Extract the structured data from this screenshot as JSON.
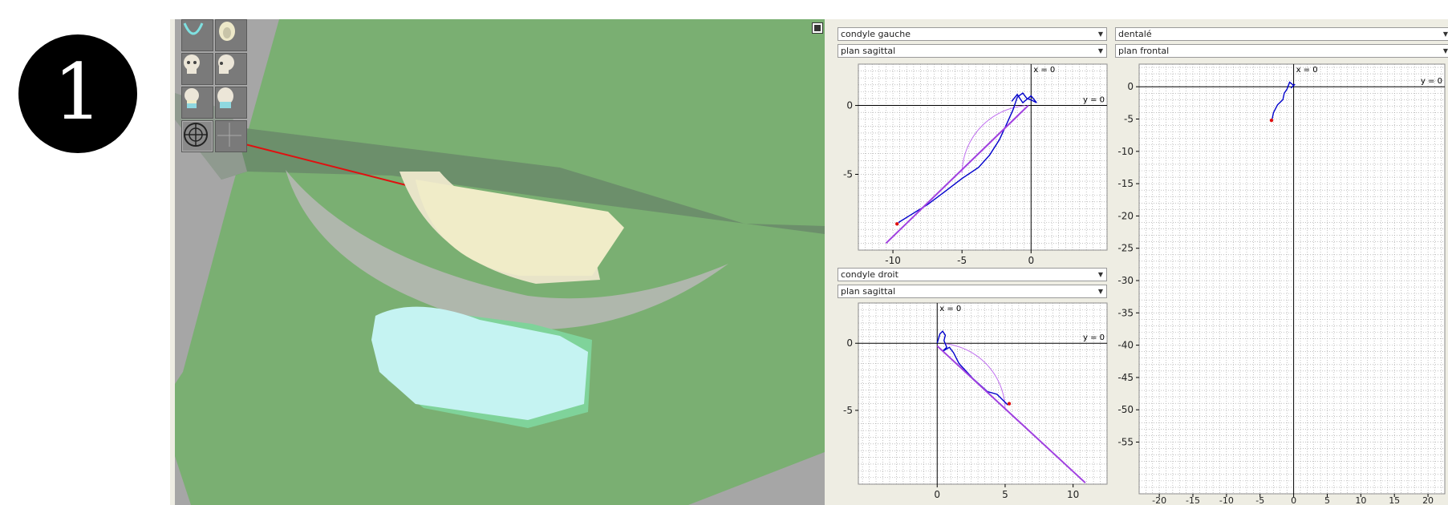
{
  "badge": {
    "number": "1"
  },
  "viewport": {
    "toolbar": [
      "arch-icon",
      "maxilla-icon",
      "skull-front-icon",
      "skull-side-icon",
      "skull-front-color-icon",
      "skull-back-color-icon",
      "target-icon",
      "crosshair-icon"
    ]
  },
  "panels": {
    "left_top": {
      "select1": "condyle gauche",
      "select2": "plan sagittal"
    },
    "left_bottom": {
      "select1": "condyle droit",
      "select2": "plan sagittal"
    },
    "right": {
      "select1": "dentalé",
      "select2": "plan frontal"
    }
  },
  "chart_data": [
    {
      "type": "line",
      "name_label": "condyle gauche / plan sagittal",
      "x_ticks": [
        "-10",
        "-5",
        "0"
      ],
      "y_ticks": [
        "0",
        "-5"
      ],
      "xlim": [
        -12.5,
        5.5
      ],
      "ylim": [
        -10.5,
        3
      ],
      "origin_labels": {
        "x": "x = 0",
        "y": "y = 0"
      },
      "series": [
        {
          "color": "#0000cc",
          "points": [
            [
              -9.6,
              -8.5
            ],
            [
              -8.8,
              -8
            ],
            [
              -7.5,
              -7.2
            ],
            [
              -6.3,
              -6.3
            ],
            [
              -5,
              -5.3
            ],
            [
              -3.8,
              -4.5
            ],
            [
              -3,
              -3.6
            ],
            [
              -2.3,
              -2.5
            ],
            [
              -1.7,
              -1.2
            ],
            [
              -1.3,
              -0.3
            ],
            [
              -1,
              0.6
            ],
            [
              -0.6,
              0.9
            ],
            [
              -0.3,
              0.5
            ],
            [
              0,
              0.4
            ],
            [
              0.4,
              0.2
            ],
            [
              0,
              0.7
            ],
            [
              -0.6,
              0.2
            ],
            [
              -1,
              0.8
            ],
            [
              -1.4,
              0.3
            ]
          ]
        },
        {
          "color": "#a040e0",
          "points": [
            [
              -10.5,
              -10
            ],
            [
              -0.2,
              0
            ]
          ]
        }
      ],
      "arc": {
        "cx": 0,
        "cy": -5,
        "r": 5,
        "from_deg": 95,
        "to_deg": 180
      },
      "end_point": [
        -9.7,
        -8.6
      ]
    },
    {
      "type": "line",
      "name_label": "condyle droit / plan sagittal",
      "x_ticks": [
        "0",
        "5",
        "10"
      ],
      "y_ticks": [
        "0",
        "-5"
      ],
      "xlim": [
        -5.8,
        12.5
      ],
      "ylim": [
        -10.5,
        3
      ],
      "origin_labels": {
        "x": "x = 0",
        "y": "y = 0"
      },
      "series": [
        {
          "color": "#0000cc",
          "points": [
            [
              0,
              0
            ],
            [
              0.2,
              0.7
            ],
            [
              0.4,
              0.9
            ],
            [
              0.6,
              0.6
            ],
            [
              0.5,
              0.2
            ],
            [
              0.7,
              -0.3
            ],
            [
              0.4,
              -0.6
            ],
            [
              0.9,
              -0.3
            ],
            [
              1.2,
              -0.7
            ],
            [
              1.6,
              -1.5
            ],
            [
              2.6,
              -2.6
            ],
            [
              3.7,
              -3.6
            ],
            [
              4.4,
              -3.8
            ],
            [
              5.2,
              -4.6
            ]
          ]
        },
        {
          "color": "#a040e0",
          "points": [
            [
              0,
              -0.2
            ],
            [
              10.9,
              -10.4
            ]
          ]
        }
      ],
      "arc": {
        "cx": 0,
        "cy": -5,
        "r": 5,
        "from_deg": 0,
        "to_deg": 85
      },
      "end_point": [
        5.3,
        -4.5
      ]
    },
    {
      "type": "line",
      "name_label": "dentalé / plan frontal",
      "x_ticks": [
        "-20",
        "-15",
        "-10",
        "-5",
        "0",
        "5",
        "10",
        "15",
        "20"
      ],
      "y_ticks": [
        "0",
        "-5",
        "-10",
        "-15",
        "-20",
        "-25",
        "-30",
        "-35",
        "-40",
        "-45",
        "-50",
        "-55"
      ],
      "xlim": [
        -23,
        22.5
      ],
      "ylim": [
        -63,
        3.5
      ],
      "origin_labels": {
        "x": "x = 0",
        "y": "y = 0"
      },
      "series": [
        {
          "color": "#0000cc",
          "points": [
            [
              -3.2,
              -5
            ],
            [
              -3,
              -4
            ],
            [
              -2.4,
              -2.8
            ],
            [
              -1.6,
              -2
            ],
            [
              -1.4,
              -1
            ],
            [
              -1,
              -0.4
            ],
            [
              -0.6,
              0.7
            ],
            [
              0,
              0.2
            ],
            [
              -0.4,
              -0.2
            ],
            [
              0.2,
              0.4
            ]
          ]
        }
      ],
      "end_point": [
        -3.3,
        -5.2
      ]
    }
  ]
}
